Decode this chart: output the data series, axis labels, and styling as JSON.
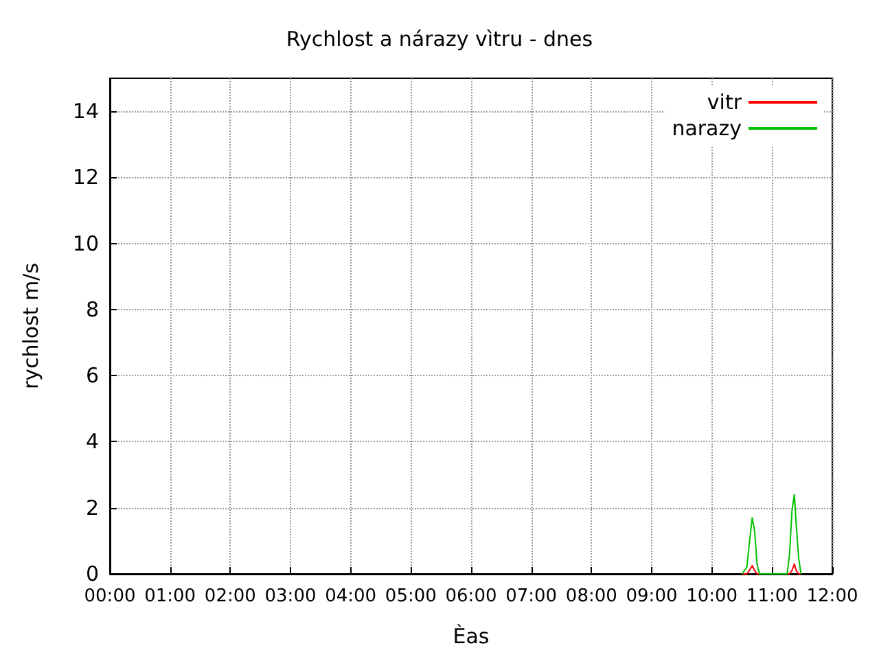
{
  "chart_data": {
    "type": "line",
    "title": "Rychlost a nárazy vìtru - dnes",
    "xlabel": "Èas",
    "ylabel": "rychlost m/s",
    "x": [
      10.5,
      10.58,
      10.62,
      10.67,
      10.71,
      10.75,
      10.79,
      11.25,
      11.29,
      11.33,
      11.37,
      11.4,
      11.44,
      11.48
    ],
    "series": [
      {
        "name": "vitr",
        "color": "#ff0000",
        "values": [
          0,
          0,
          0.1,
          0.25,
          0.1,
          0,
          0,
          0,
          0,
          0.1,
          0.3,
          0.1,
          0,
          0
        ]
      },
      {
        "name": "narazy",
        "color": "#00c000",
        "values": [
          0,
          0.2,
          0.9,
          1.7,
          1.3,
          0.3,
          0,
          0,
          0.6,
          1.9,
          2.4,
          1.5,
          0.5,
          0
        ]
      }
    ],
    "xlim": [
      0,
      12
    ],
    "xticks": [
      {
        "value": 0,
        "label": "00:00"
      },
      {
        "value": 1,
        "label": "01:00"
      },
      {
        "value": 2,
        "label": "02:00"
      },
      {
        "value": 3,
        "label": "03:00"
      },
      {
        "value": 4,
        "label": "04:00"
      },
      {
        "value": 5,
        "label": "05:00"
      },
      {
        "value": 6,
        "label": "06:00"
      },
      {
        "value": 7,
        "label": "07:00"
      },
      {
        "value": 8,
        "label": "08:00"
      },
      {
        "value": 9,
        "label": "09:00"
      },
      {
        "value": 10,
        "label": "10:00"
      },
      {
        "value": 11,
        "label": "11:00"
      },
      {
        "value": 12,
        "label": "12:00"
      }
    ],
    "ylim": [
      0,
      15
    ],
    "yticks": [
      0,
      2,
      4,
      6,
      8,
      10,
      12,
      14
    ],
    "grid": true,
    "legend": "top right",
    "marker": "none",
    "line_style": "solid"
  }
}
